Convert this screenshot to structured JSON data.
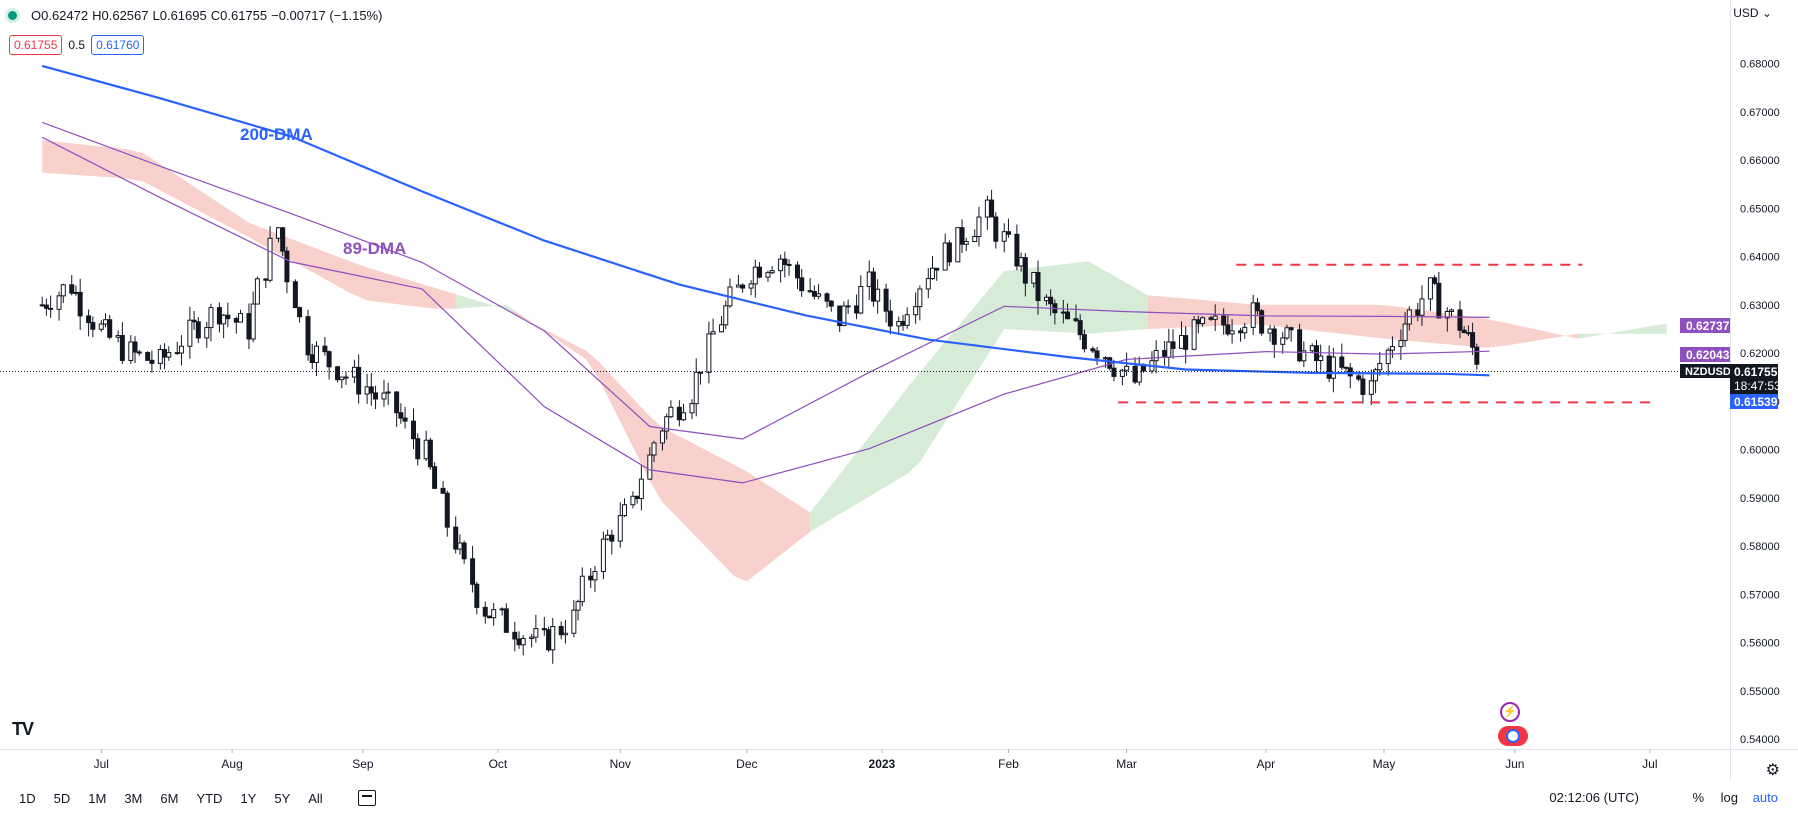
{
  "header": {
    "open": "O0.62472",
    "high": "H0.62567",
    "low": "L0.61695",
    "close": "C0.61755",
    "change": "−0.00717 (−1.15%)",
    "sell_price": "0.61755",
    "spread": "0.5",
    "buy_price": "0.61760",
    "currency": "USD ⌄"
  },
  "colors": {
    "up": "#131722",
    "down": "#131722",
    "ma200": "#2962ff",
    "ma89": "#8e4fbf",
    "cloud_bear": "#f8c9c3",
    "cloud_bull": "#cfe9d0",
    "level_line": "#f23645"
  },
  "price_labels": {
    "ma89_value": "0.62737",
    "cloud_value": "0.62043",
    "symbol": "NZDUSD",
    "last_price": "0.61755",
    "countdown": "18:47:53",
    "ma200_value": "0.61539"
  },
  "bottom": {
    "ranges": [
      "1D",
      "5D",
      "1M",
      "3M",
      "6M",
      "YTD",
      "1Y",
      "5Y",
      "All"
    ],
    "clock": "02:12:06 (UTC)",
    "percent": "%",
    "log": "log",
    "auto": "auto"
  },
  "chart_data": {
    "type": "candlestick",
    "symbol": "NZDUSD",
    "timeframe": "1D",
    "xlabel": "",
    "ylabel": "",
    "x_ticks": [
      "Jul",
      "Aug",
      "Sep",
      "Oct",
      "Nov",
      "Dec",
      "2023",
      "Feb",
      "Mar",
      "Apr",
      "May",
      "Jun",
      "Jul"
    ],
    "y_ticks": [
      "0.54000",
      "0.55000",
      "0.56000",
      "0.57000",
      "0.58000",
      "0.59000",
      "0.60000",
      "0.61000",
      "0.62000",
      "0.63000",
      "0.64000",
      "0.65000",
      "0.66000",
      "0.67000",
      "0.68000"
    ],
    "ylim": [
      0.5388,
      0.6915
    ],
    "last_price": 0.61755,
    "annotations": [
      {
        "text": "200-DMA",
        "color": "#2962ff"
      },
      {
        "text": "89-DMA",
        "color": "#8e4fbf"
      }
    ],
    "resistance_level": 0.6383,
    "support_level": 0.6098,
    "ma200": [
      [
        "2022-06-17",
        0.6795
      ],
      [
        "2022-07-15",
        0.6728
      ],
      [
        "2022-08-15",
        0.6649
      ],
      [
        "2022-09-15",
        0.6535
      ],
      [
        "2022-10-14",
        0.6433
      ],
      [
        "2022-11-15",
        0.6342
      ],
      [
        "2022-12-15",
        0.6278
      ],
      [
        "2023-01-13",
        0.6228
      ],
      [
        "2023-02-15",
        0.6192
      ],
      [
        "2023-03-15",
        0.6166
      ],
      [
        "2023-04-14",
        0.6159
      ],
      [
        "2023-05-15",
        0.6157
      ],
      [
        "2023-05-26",
        0.6154
      ]
    ],
    "ma89": [
      [
        "2022-06-17",
        0.6647
      ],
      [
        "2022-07-15",
        0.6522
      ],
      [
        "2022-08-15",
        0.6389
      ],
      [
        "2022-09-15",
        0.6333
      ],
      [
        "2022-10-14",
        0.6089
      ],
      [
        "2022-11-08",
        0.5958
      ],
      [
        "2022-11-30",
        0.5931
      ],
      [
        "2022-12-30",
        0.6002
      ],
      [
        "2023-01-31",
        0.6115
      ],
      [
        "2023-03-01",
        0.6187
      ],
      [
        "2023-04-03",
        0.6203
      ],
      [
        "2023-05-01",
        0.6198
      ],
      [
        "2023-05-26",
        0.6204
      ]
    ],
    "ma89_upper": [
      [
        "2022-06-17",
        0.6678
      ],
      [
        "2022-07-15",
        0.6587
      ],
      [
        "2022-08-15",
        0.6489
      ],
      [
        "2022-09-15",
        0.6388
      ],
      [
        "2022-10-14",
        0.6246
      ],
      [
        "2022-11-08",
        0.6048
      ],
      [
        "2022-11-30",
        0.6022
      ],
      [
        "2022-12-30",
        0.616
      ],
      [
        "2023-01-31",
        0.6297
      ],
      [
        "2023-03-01",
        0.6286
      ],
      [
        "2023-04-03",
        0.6277
      ],
      [
        "2023-05-01",
        0.6276
      ],
      [
        "2023-05-26",
        0.6274
      ]
    ],
    "ichimoku_cloud": [
      {
        "from": "2022-06-17",
        "to": "2022-09-23",
        "sentiment": "bearish"
      },
      {
        "from": "2022-09-23",
        "to": "2022-10-07",
        "sentiment": "bullish"
      },
      {
        "from": "2022-10-07",
        "to": "2022-12-16",
        "sentiment": "bearish"
      },
      {
        "from": "2022-12-16",
        "to": "2023-03-06",
        "sentiment": "bullish"
      },
      {
        "from": "2023-03-06",
        "to": "2023-06-16",
        "sentiment": "bearish"
      },
      {
        "from": "2023-06-16",
        "to": "2023-07-07",
        "sentiment": "bullish"
      }
    ],
    "candles_close": [
      [
        "2022-06-17",
        0.63
      ],
      [
        "2022-06-24",
        0.634
      ],
      [
        "2022-07-01",
        0.625
      ],
      [
        "2022-07-08",
        0.62
      ],
      [
        "2022-07-15",
        0.618
      ],
      [
        "2022-07-22",
        0.624
      ],
      [
        "2022-07-29",
        0.629
      ],
      [
        "2022-08-05",
        0.625
      ],
      [
        "2022-08-12",
        0.646
      ],
      [
        "2022-08-19",
        0.622
      ],
      [
        "2022-08-26",
        0.617
      ],
      [
        "2022-09-02",
        0.613
      ],
      [
        "2022-09-09",
        0.608
      ],
      [
        "2022-09-16",
        0.599
      ],
      [
        "2022-09-23",
        0.581
      ],
      [
        "2022-09-30",
        0.567
      ],
      [
        "2022-10-07",
        0.563
      ],
      [
        "2022-10-14",
        0.56
      ],
      [
        "2022-10-21",
        0.565
      ],
      [
        "2022-10-28",
        0.58
      ],
      [
        "2022-11-04",
        0.588
      ],
      [
        "2022-11-11",
        0.605
      ],
      [
        "2022-11-18",
        0.612
      ],
      [
        "2022-11-25",
        0.627
      ],
      [
        "2022-12-02",
        0.637
      ],
      [
        "2022-12-09",
        0.64
      ],
      [
        "2022-12-16",
        0.633
      ],
      [
        "2022-12-23",
        0.627
      ],
      [
        "2022-12-30",
        0.634
      ],
      [
        "2023-01-06",
        0.626
      ],
      [
        "2023-01-13",
        0.637
      ],
      [
        "2023-01-20",
        0.643
      ],
      [
        "2023-01-27",
        0.649
      ],
      [
        "2023-02-03",
        0.64
      ],
      [
        "2023-02-10",
        0.63
      ],
      [
        "2023-02-17",
        0.625
      ],
      [
        "2023-02-24",
        0.62
      ],
      [
        "2023-03-03",
        0.614
      ],
      [
        "2023-03-10",
        0.62
      ],
      [
        "2023-03-17",
        0.624
      ],
      [
        "2023-03-24",
        0.626
      ],
      [
        "2023-03-31",
        0.628
      ],
      [
        "2023-04-07",
        0.624
      ],
      [
        "2023-04-14",
        0.619
      ],
      [
        "2023-04-21",
        0.616
      ],
      [
        "2023-04-28",
        0.613
      ],
      [
        "2023-05-05",
        0.625
      ],
      [
        "2023-05-12",
        0.633
      ],
      [
        "2023-05-19",
        0.626
      ],
      [
        "2023-05-24",
        0.6176
      ]
    ],
    "price_range_high": 0.6528,
    "price_range_low": 0.5512
  }
}
